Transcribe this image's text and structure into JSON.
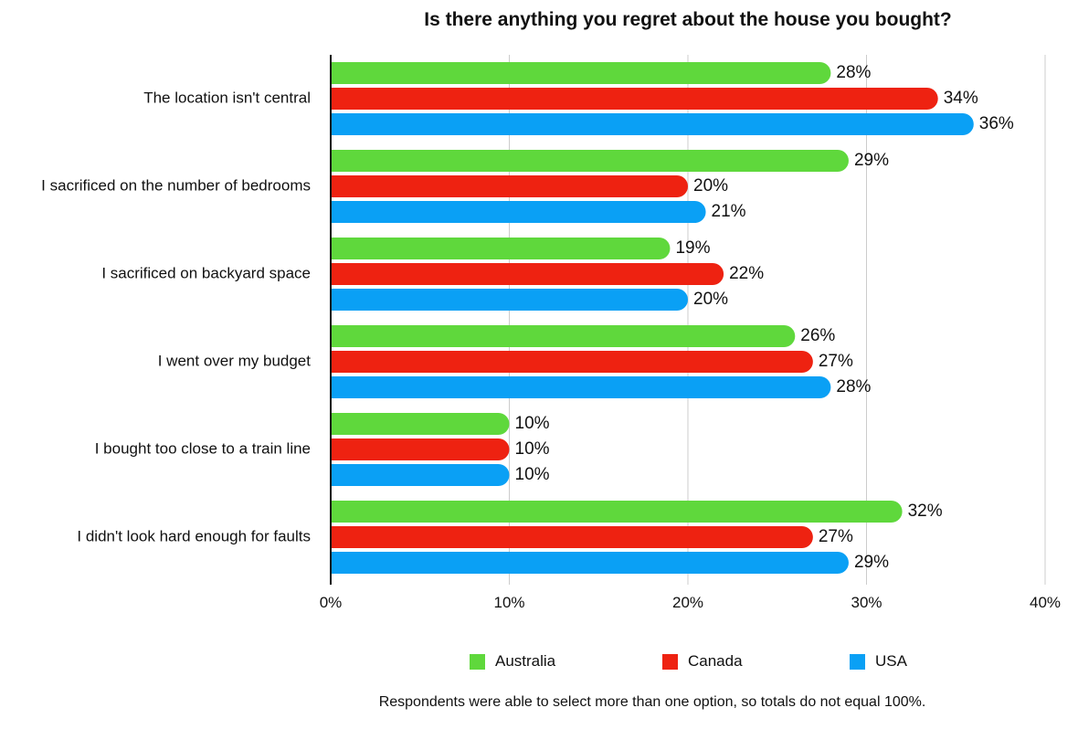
{
  "chart_data": {
    "type": "bar",
    "orientation": "horizontal",
    "title": "Is there anything you regret about the house you bought?",
    "categories": [
      "The location isn't central",
      "I sacrificed on the number of bedrooms",
      "I sacrificed on backyard space",
      "I went over my budget",
      "I bought too close to a train line",
      "I didn't look hard enough for faults"
    ],
    "series": [
      {
        "name": "Australia",
        "color": "#5fd83c",
        "values": [
          28,
          29,
          19,
          26,
          10,
          32
        ],
        "labels": [
          "28%",
          "29%",
          "19%",
          "26%",
          "10%",
          "32%"
        ]
      },
      {
        "name": "Canada",
        "color": "#ee2211",
        "values": [
          34,
          20,
          22,
          27,
          10,
          27
        ],
        "labels": [
          "34%",
          "20%",
          "22%",
          "27%",
          "10%",
          "27%"
        ]
      },
      {
        "name": "USA",
        "color": "#0aa0f5",
        "values": [
          36,
          21,
          20,
          28,
          10,
          29
        ],
        "labels": [
          "36%",
          "21%",
          "20%",
          "28%",
          "10%",
          "29%"
        ]
      }
    ],
    "xlim": [
      0,
      40
    ],
    "xticks": [
      0,
      10,
      20,
      30,
      40
    ],
    "xtick_labels": [
      "0%",
      "10%",
      "20%",
      "30%",
      "40%"
    ],
    "grid": true,
    "legend_position": "bottom",
    "footnote": "Respondents were able to select more than one option, so totals do not equal 100%."
  }
}
